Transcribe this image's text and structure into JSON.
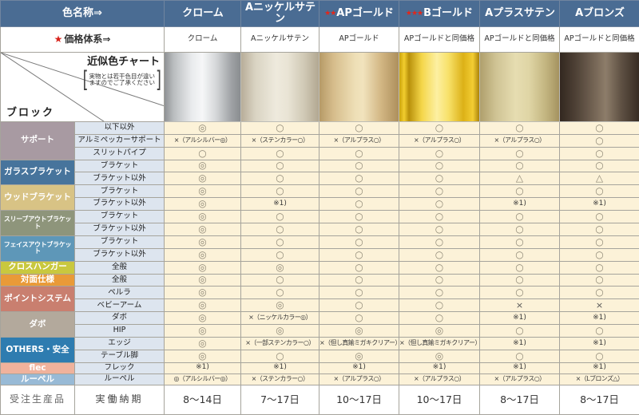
{
  "header": {
    "col_a_label": "色名称⇒",
    "price_star": "★",
    "price_label": "価格体系⇒",
    "chart_title": "近似色チャート",
    "chart_note1": "実物とは若干色目が違い",
    "chart_note2": "ますのでご了承ください",
    "block_label": "ブロック",
    "header_bg": "#4a6c93",
    "star_color": "#e2271b",
    "columns": [
      {
        "name": "クローム",
        "stars": "",
        "price": "クローム",
        "swatch_colors": [
          "#8e9194 0%",
          "#babdbf 12%",
          "#e8eaec 35%",
          "#f6f7f8 50%",
          "#d5d7d9 68%",
          "#9fa2a5 88%",
          "#8a8d90 100%"
        ]
      },
      {
        "name": "Aニッケルサテン",
        "stars": "",
        "price": "Aニッケルサテン",
        "swatch_colors": [
          "#b7ad99 0%",
          "#d9d3c2 18%",
          "#eeeadd 45%",
          "#e9e4d5 60%",
          "#cfc8b4 82%",
          "#b2a791 100%"
        ]
      },
      {
        "name": "APゴールド",
        "stars": "★★",
        "price": "APゴールド",
        "swatch_colors": [
          "#b69a67 0%",
          "#d6bd8c 18%",
          "#eedfb6 45%",
          "#f1e3bd 55%",
          "#d2b683 78%",
          "#ad8f5c 100%"
        ]
      },
      {
        "name": "Bゴールド",
        "stars": "★★★",
        "price": "APゴールドと同価格",
        "swatch_colors": [
          "#caa30c 0%",
          "#f2cd2e 6%",
          "#b8900a 12%",
          "#f4d649 28%",
          "#fdf0a2 47%",
          "#f7e067 62%",
          "#dcb117 80%",
          "#f3cd33 92%",
          "#ab830a 100%"
        ]
      },
      {
        "name": "Aプラスサテン",
        "stars": "",
        "price": "APゴールドと同価格",
        "swatch_colors": [
          "#af9f6c 0%",
          "#cfc394 20%",
          "#e6ddb1 45%",
          "#dfd5a5 62%",
          "#c1b37e 84%",
          "#a4925f 100%"
        ]
      },
      {
        "name": "Aブロンズ",
        "stars": "",
        "price": "APゴールドと同価格",
        "swatch_colors": [
          "#332820 0%",
          "#4e4136 20%",
          "#7c6c5b 48%",
          "#8d7d6a 58%",
          "#5e5043 78%",
          "#382c23 100%"
        ]
      }
    ]
  },
  "categories": [
    {
      "label": "サポート",
      "color": "#a89aa2",
      "small": false,
      "rows": [
        "以下以外",
        "アルミペッカーサポート",
        "スリットパイプ"
      ]
    },
    {
      "label": "ガラスブラケット",
      "color": "#47749c",
      "small": false,
      "rows": [
        "ブラケット",
        "ブラケット以外"
      ]
    },
    {
      "label": "ウッドブラケット",
      "color": "#d8c385",
      "small": false,
      "rows": [
        "ブラケット",
        "ブラケット以外"
      ]
    },
    {
      "label": "スリーブアウトブラケット",
      "color": "#8e957b",
      "small": true,
      "rows": [
        "ブラケット",
        "ブラケット以外"
      ]
    },
    {
      "label": "フェイスアウトブラケット",
      "color": "#5e97b8",
      "small": true,
      "rows": [
        "ブラケット",
        "ブラケット以外"
      ]
    },
    {
      "label": "クロスハンガー",
      "color": "#c9c83e",
      "small": false,
      "rows": [
        "全般"
      ]
    },
    {
      "label": "対面仕様",
      "color": "#e99a38",
      "small": false,
      "rows": [
        "全般"
      ]
    },
    {
      "label": "ポイントシステム",
      "color": "#c97f6f",
      "small": false,
      "rows": [
        "ペルラ",
        "ベビーアーム"
      ]
    },
    {
      "label": "ダボ",
      "color": "#b3a99c",
      "small": false,
      "rows": [
        "ダボ",
        "HIP"
      ]
    },
    {
      "label": "OTHERS・安全",
      "color": "#2e7cb0",
      "small": false,
      "rows": [
        "エッジ",
        "テーブル脚"
      ]
    },
    {
      "label": "flec",
      "color": "#f0b29c",
      "small": false,
      "rows": [
        "フレック"
      ]
    },
    {
      "label": "ルーペル",
      "color": "#98bad6",
      "small": false,
      "rows": [
        "ルーペル"
      ]
    }
  ],
  "cells": [
    [
      "◎",
      "○",
      "○",
      "○",
      "○",
      "○"
    ],
    [
      "×（アルシルバー◎）",
      "×（ステンカラー○）",
      "×（アルプラス○）",
      "×（アルプラス○）",
      "×（アルプラス○）",
      "○"
    ],
    [
      "○",
      "○",
      "○",
      "○",
      "○",
      "○"
    ],
    [
      "◎",
      "○",
      "○",
      "○",
      "○",
      "○"
    ],
    [
      "◎",
      "○",
      "○",
      "○",
      "△",
      "△"
    ],
    [
      "◎",
      "○",
      "○",
      "○",
      "○",
      "○"
    ],
    [
      "◎",
      "※1)",
      "○",
      "○",
      "※1)",
      "※1)"
    ],
    [
      "◎",
      "○",
      "○",
      "○",
      "○",
      "○"
    ],
    [
      "◎",
      "○",
      "○",
      "○",
      "○",
      "○"
    ],
    [
      "◎",
      "○",
      "○",
      "○",
      "○",
      "○"
    ],
    [
      "◎",
      "○",
      "○",
      "○",
      "○",
      "○"
    ],
    [
      "◎",
      "◎",
      "○",
      "○",
      "○",
      "○"
    ],
    [
      "◎",
      "○",
      "○",
      "○",
      "○",
      "○"
    ],
    [
      "◎",
      "○",
      "○",
      "○",
      "○",
      "○"
    ],
    [
      "◎",
      "◎",
      "○",
      "○",
      "×",
      "×"
    ],
    [
      "◎",
      "×（ニッケルカラー◎）",
      "○",
      "○",
      "※1)",
      "※1)"
    ],
    [
      "◎",
      "◎",
      "◎",
      "◎",
      "○",
      "○"
    ],
    [
      "◎",
      "×（一部ステンカラー○）",
      "×（但し真鍮ミガキクリアー）",
      "×（但し真鍮ミガキクリアー）",
      "※1)",
      "※1)"
    ],
    [
      "◎",
      "○",
      "◎",
      "◎",
      "○",
      "○"
    ],
    [
      "※1)",
      "※1)",
      "※1)",
      "※1)",
      "※1)",
      "※1)"
    ],
    [
      "◎（アルシルバー◎）",
      "×（ステンカラー○）",
      "×（アルプラス○）",
      "×（アルプラス○）",
      "×（アルプラス○）",
      "×（Lブロンズ△）"
    ]
  ],
  "footer": {
    "left": "受注生産品",
    "mid": "実働納期",
    "values": [
      "8〜14日",
      "7〜17日",
      "10〜17日",
      "10〜17日",
      "8〜17日",
      "8〜17日"
    ]
  }
}
